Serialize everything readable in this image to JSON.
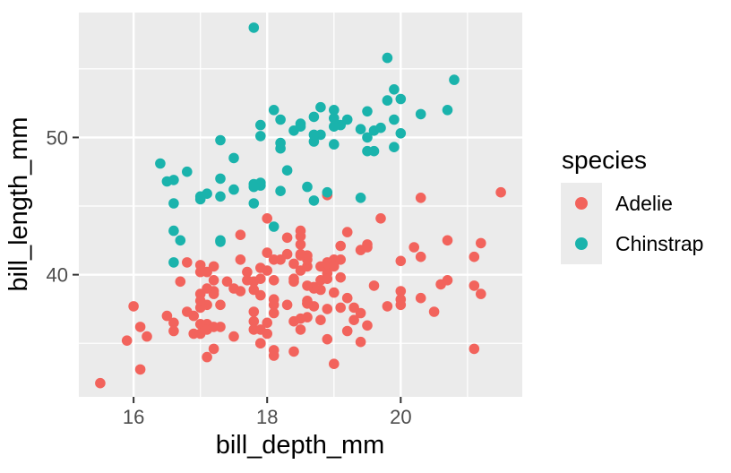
{
  "chart_data": {
    "type": "scatter",
    "xlabel": "bill_depth_mm",
    "ylabel": "bill_length_mm",
    "legend_title": "species",
    "legend_position": "right",
    "xlim": [
      15.18,
      21.82
    ],
    "ylim": [
      31.1,
      59.1
    ],
    "x_ticks": [
      16,
      18,
      20
    ],
    "y_ticks": [
      40,
      50
    ],
    "x_minor_ticks": [
      17,
      19,
      21
    ],
    "y_minor_ticks": [
      35,
      45,
      55
    ],
    "grid": true,
    "panel_bg": "#EBEBEB",
    "legend_key_bg": "#EBEBEB",
    "grid_color": "#FFFFFF",
    "tick_mark_color": "#333333",
    "tick_label_color": "#4D4D4D",
    "point_radius": 5.8,
    "series": [
      {
        "name": "Adelie",
        "color": "#F2635C",
        "points": [
          [
            18.7,
            39.1
          ],
          [
            17.4,
            39.5
          ],
          [
            18.0,
            40.3
          ],
          [
            19.3,
            36.7
          ],
          [
            20.6,
            39.3
          ],
          [
            17.8,
            38.9
          ],
          [
            19.6,
            39.2
          ],
          [
            18.1,
            34.1
          ],
          [
            20.2,
            42.0
          ],
          [
            17.1,
            37.8
          ],
          [
            17.3,
            37.8
          ],
          [
            17.6,
            41.1
          ],
          [
            21.2,
            38.6
          ],
          [
            21.1,
            34.6
          ],
          [
            17.8,
            36.6
          ],
          [
            19.0,
            38.7
          ],
          [
            20.7,
            42.5
          ],
          [
            18.4,
            34.4
          ],
          [
            21.5,
            46.0
          ],
          [
            18.3,
            37.8
          ],
          [
            18.7,
            37.7
          ],
          [
            19.2,
            35.9
          ],
          [
            18.1,
            38.2
          ],
          [
            17.2,
            38.8
          ],
          [
            18.9,
            35.3
          ],
          [
            18.6,
            40.6
          ],
          [
            17.9,
            40.5
          ],
          [
            18.6,
            37.9
          ],
          [
            18.9,
            40.5
          ],
          [
            16.7,
            39.5
          ],
          [
            18.1,
            37.2
          ],
          [
            17.8,
            39.5
          ],
          [
            18.9,
            40.9
          ],
          [
            17.0,
            36.4
          ],
          [
            21.1,
            39.2
          ],
          [
            20.0,
            38.8
          ],
          [
            18.5,
            42.2
          ],
          [
            19.3,
            37.6
          ],
          [
            19.1,
            39.8
          ],
          [
            18.0,
            36.5
          ],
          [
            18.4,
            40.8
          ],
          [
            18.5,
            36.0
          ],
          [
            19.7,
            44.1
          ],
          [
            16.9,
            37.0
          ],
          [
            18.8,
            39.6
          ],
          [
            19.0,
            41.1
          ],
          [
            18.9,
            37.5
          ],
          [
            17.9,
            36.0
          ],
          [
            21.2,
            42.3
          ],
          [
            17.7,
            39.6
          ],
          [
            18.9,
            40.1
          ],
          [
            17.9,
            35.0
          ],
          [
            19.5,
            42.0
          ],
          [
            18.1,
            34.5
          ],
          [
            18.6,
            41.4
          ],
          [
            17.5,
            39.0
          ],
          [
            18.8,
            40.6
          ],
          [
            16.6,
            36.5
          ],
          [
            19.1,
            37.6
          ],
          [
            16.9,
            35.7
          ],
          [
            21.1,
            41.3
          ],
          [
            17.0,
            37.6
          ],
          [
            18.2,
            41.1
          ],
          [
            17.1,
            36.4
          ],
          [
            18.0,
            41.6
          ],
          [
            16.2,
            35.5
          ],
          [
            19.1,
            41.1
          ],
          [
            16.6,
            35.9
          ],
          [
            19.4,
            41.8
          ],
          [
            19.0,
            33.5
          ],
          [
            18.4,
            39.7
          ],
          [
            17.2,
            39.6
          ],
          [
            18.9,
            45.8
          ],
          [
            17.5,
            35.5
          ],
          [
            18.5,
            42.8
          ],
          [
            16.8,
            40.9
          ],
          [
            19.4,
            37.2
          ],
          [
            16.1,
            36.2
          ],
          [
            19.1,
            42.1
          ],
          [
            17.2,
            34.6
          ],
          [
            17.6,
            42.9
          ],
          [
            18.8,
            36.7
          ],
          [
            19.4,
            35.1
          ],
          [
            17.8,
            37.3
          ],
          [
            20.3,
            41.3
          ],
          [
            19.5,
            36.3
          ],
          [
            18.6,
            36.9
          ],
          [
            19.2,
            38.3
          ],
          [
            18.8,
            38.9
          ],
          [
            18.0,
            35.7
          ],
          [
            18.1,
            41.1
          ],
          [
            17.1,
            34.0
          ],
          [
            18.1,
            39.6
          ],
          [
            17.3,
            36.2
          ],
          [
            18.9,
            40.8
          ],
          [
            18.6,
            38.1
          ],
          [
            18.5,
            40.3
          ],
          [
            16.1,
            33.1
          ],
          [
            18.5,
            43.2
          ],
          [
            17.0,
            35.7
          ],
          [
            17.0,
            40.2
          ],
          [
            17.2,
            40.6
          ],
          [
            15.5,
            32.1
          ],
          [
            17.0,
            40.7
          ],
          [
            16.8,
            37.3
          ],
          [
            18.7,
            39.0
          ],
          [
            18.6,
            39.2
          ],
          [
            18.4,
            36.6
          ],
          [
            17.8,
            36.0
          ],
          [
            18.1,
            37.8
          ],
          [
            17.1,
            36.0
          ],
          [
            18.5,
            41.5
          ],
          [
            17.9,
            35.0
          ],
          [
            20.0,
            41.0
          ],
          [
            16.0,
            37.7
          ],
          [
            20.0,
            37.8
          ],
          [
            18.6,
            37.9
          ],
          [
            18.9,
            39.7
          ],
          [
            17.2,
            38.6
          ],
          [
            20.0,
            38.2
          ],
          [
            17.0,
            38.1
          ],
          [
            20.3,
            38.3
          ],
          [
            18.4,
            39.5
          ],
          [
            20.3,
            45.6
          ],
          [
            19.5,
            42.2
          ],
          [
            20.7,
            39.6
          ],
          [
            18.3,
            42.7
          ],
          [
            17.0,
            38.6
          ],
          [
            20.5,
            37.3
          ],
          [
            18.6,
            41.1
          ],
          [
            17.2,
            36.2
          ],
          [
            19.8,
            37.7
          ],
          [
            17.1,
            40.2
          ],
          [
            18.5,
            41.4
          ],
          [
            15.9,
            35.2
          ],
          [
            19.0,
            40.6
          ],
          [
            17.6,
            38.8
          ],
          [
            18.3,
            41.5
          ],
          [
            17.1,
            39.0
          ],
          [
            18.0,
            44.1
          ],
          [
            17.9,
            38.5
          ],
          [
            19.2,
            43.1
          ],
          [
            18.5,
            36.8
          ],
          [
            16.5,
            37.0
          ],
          [
            17.9,
            39.7
          ],
          [
            17.7,
            40.2
          ]
        ]
      },
      {
        "name": "Chinstrap",
        "color": "#1AB3AC",
        "points": [
          [
            17.9,
            46.5
          ],
          [
            19.5,
            50.0
          ],
          [
            19.2,
            51.3
          ],
          [
            18.7,
            45.4
          ],
          [
            19.8,
            52.7
          ],
          [
            17.8,
            45.2
          ],
          [
            18.2,
            46.1
          ],
          [
            18.2,
            51.3
          ],
          [
            18.9,
            46.0
          ],
          [
            19.9,
            51.3
          ],
          [
            17.8,
            46.6
          ],
          [
            20.3,
            51.7
          ],
          [
            17.3,
            47.0
          ],
          [
            18.1,
            52.0
          ],
          [
            17.1,
            45.9
          ],
          [
            19.6,
            50.5
          ],
          [
            20.0,
            50.3
          ],
          [
            17.8,
            58.0
          ],
          [
            18.6,
            46.4
          ],
          [
            18.2,
            49.2
          ],
          [
            17.3,
            42.4
          ],
          [
            17.5,
            48.5
          ],
          [
            16.6,
            43.2
          ],
          [
            19.4,
            50.6
          ],
          [
            17.9,
            46.7
          ],
          [
            19.0,
            52.0
          ],
          [
            18.4,
            50.5
          ],
          [
            19.0,
            49.5
          ],
          [
            17.8,
            46.4
          ],
          [
            20.0,
            52.8
          ],
          [
            16.6,
            40.9
          ],
          [
            20.8,
            54.2
          ],
          [
            16.7,
            42.5
          ],
          [
            18.5,
            51.0
          ],
          [
            18.7,
            49.7
          ],
          [
            16.8,
            47.5
          ],
          [
            18.3,
            47.6
          ],
          [
            20.7,
            52.0
          ],
          [
            16.6,
            46.9
          ],
          [
            19.9,
            53.5
          ],
          [
            19.5,
            49.0
          ],
          [
            17.5,
            46.2
          ],
          [
            19.1,
            50.9
          ],
          [
            17.0,
            45.5
          ],
          [
            17.9,
            50.9
          ],
          [
            18.5,
            50.8
          ],
          [
            17.9,
            50.1
          ],
          [
            19.6,
            49.0
          ],
          [
            18.7,
            51.5
          ],
          [
            17.3,
            49.8
          ],
          [
            16.4,
            48.1
          ],
          [
            19.0,
            51.4
          ],
          [
            17.3,
            45.7
          ],
          [
            19.7,
            50.7
          ],
          [
            17.3,
            42.5
          ],
          [
            18.8,
            52.2
          ],
          [
            16.6,
            45.2
          ],
          [
            19.9,
            49.3
          ],
          [
            18.8,
            50.2
          ],
          [
            19.4,
            45.6
          ],
          [
            19.5,
            51.9
          ],
          [
            16.5,
            46.8
          ],
          [
            17.0,
            45.7
          ],
          [
            19.8,
            55.8
          ],
          [
            18.1,
            43.5
          ],
          [
            18.2,
            49.6
          ],
          [
            19.0,
            50.8
          ],
          [
            18.7,
            50.2
          ]
        ]
      }
    ]
  }
}
